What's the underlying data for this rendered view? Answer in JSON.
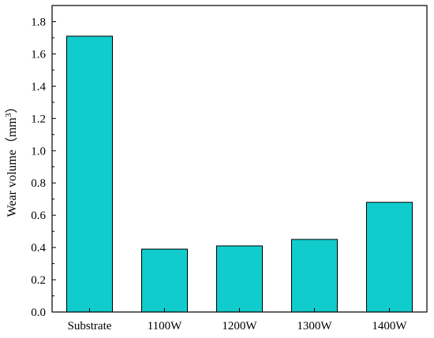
{
  "chart_data": {
    "type": "bar",
    "title": "",
    "xlabel": "",
    "ylabel": "Wear volume（mm",
    "ylabel_superscript": "3",
    "ylabel_suffix": "）",
    "categories": [
      "Substrate",
      "1100W",
      "1200W",
      "1300W",
      "1400W"
    ],
    "values": [
      1.71,
      0.39,
      0.41,
      0.45,
      0.68
    ],
    "ylim": [
      0,
      1.9
    ],
    "yticks": [
      "0.0",
      "0.2",
      "0.4",
      "0.6",
      "0.8",
      "1.0",
      "1.2",
      "1.4",
      "1.6",
      "1.8"
    ],
    "grid": false,
    "legend": "none",
    "bar_color": "#11cccc",
    "bar_edge_color": "#000000"
  }
}
